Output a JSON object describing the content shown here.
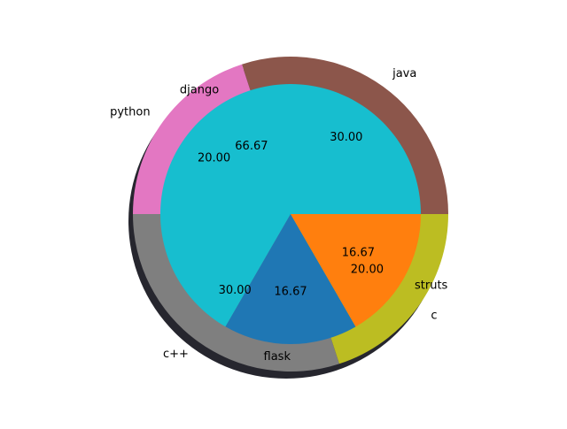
{
  "chart_data": [
    {
      "type": "pie",
      "role": "outer-ring",
      "categories": [
        "java",
        "python",
        "c++",
        "c"
      ],
      "values": [
        30.0,
        20.0,
        30.0,
        20.0
      ],
      "value_labels": [
        "30.00",
        "20.00",
        "30.00",
        "20.00"
      ],
      "colors": [
        "#8c564b",
        "#e377c2",
        "#7f7f7f",
        "#bcbd22"
      ],
      "start_angle_deg": 0,
      "shadow": true
    },
    {
      "type": "pie",
      "role": "inner-pie",
      "categories": [
        "django",
        "flask",
        "struts"
      ],
      "values": [
        66.67,
        16.67,
        16.67
      ],
      "value_labels": [
        "66.67",
        "16.67",
        "16.67"
      ],
      "colors": [
        "#17becf",
        "#1f77b4",
        "#ff7f0e"
      ],
      "start_angle_deg": 0
    }
  ]
}
